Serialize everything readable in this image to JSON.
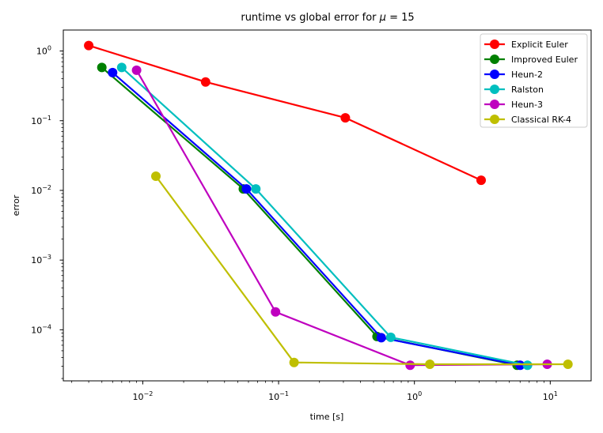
{
  "chart_data": {
    "type": "line",
    "title": "runtime vs global error for μ = 15",
    "title_parts": {
      "prefix": "runtime vs global error for ",
      "symbol": "μ",
      "suffix": " = 15"
    },
    "xlabel": "time [s]",
    "ylabel": "error",
    "xscale": "log",
    "yscale": "log",
    "xlim": [
      0.0026,
      20
    ],
    "ylim": [
      1.85e-05,
      2.0
    ],
    "grid": false,
    "legend_position": "top-right",
    "x_ticks": [
      {
        "value": 0.01,
        "base": "10",
        "exp": "−2"
      },
      {
        "value": 0.1,
        "base": "10",
        "exp": "−1"
      },
      {
        "value": 1,
        "base": "10",
        "exp": "0"
      },
      {
        "value": 10,
        "base": "10",
        "exp": "1"
      }
    ],
    "y_ticks": [
      {
        "value": 0.0001,
        "base": "10",
        "exp": "−4"
      },
      {
        "value": 0.001,
        "base": "10",
        "exp": "−3"
      },
      {
        "value": 0.01,
        "base": "10",
        "exp": "−2"
      },
      {
        "value": 0.1,
        "base": "10",
        "exp": "−1"
      },
      {
        "value": 1,
        "base": "10",
        "exp": "0"
      }
    ],
    "series": [
      {
        "name": "Explicit Euler",
        "color": "#ff0000",
        "points": [
          [
            0.004,
            1.2
          ],
          [
            0.029,
            0.36
          ],
          [
            0.31,
            0.11
          ],
          [
            3.1,
            0.014
          ]
        ]
      },
      {
        "name": "Improved Euler",
        "color": "#008000",
        "points": [
          [
            0.005,
            0.58
          ],
          [
            0.055,
            0.0105
          ],
          [
            0.53,
            8e-05
          ],
          [
            5.7,
            3.1e-05
          ]
        ]
      },
      {
        "name": "Heun-2",
        "color": "#0000ff",
        "points": [
          [
            0.006,
            0.49
          ],
          [
            0.058,
            0.0105
          ],
          [
            0.57,
            7.7e-05
          ],
          [
            6.0,
            3.1e-05
          ]
        ]
      },
      {
        "name": "Ralston",
        "color": "#00bfbf",
        "points": [
          [
            0.007,
            0.58
          ],
          [
            0.068,
            0.0105
          ],
          [
            0.67,
            7.8e-05
          ],
          [
            6.8,
            3.1e-05
          ]
        ]
      },
      {
        "name": "Heun-3",
        "color": "#bf00bf",
        "points": [
          [
            0.009,
            0.53
          ],
          [
            0.095,
            0.00018
          ],
          [
            0.93,
            3.1e-05
          ],
          [
            9.5,
            3.2e-05
          ]
        ]
      },
      {
        "name": "Classical RK-4",
        "color": "#bfbf00",
        "points": [
          [
            0.0125,
            0.016
          ],
          [
            0.13,
            3.4e-05
          ],
          [
            1.3,
            3.2e-05
          ],
          [
            13.5,
            3.2e-05
          ]
        ]
      }
    ]
  }
}
